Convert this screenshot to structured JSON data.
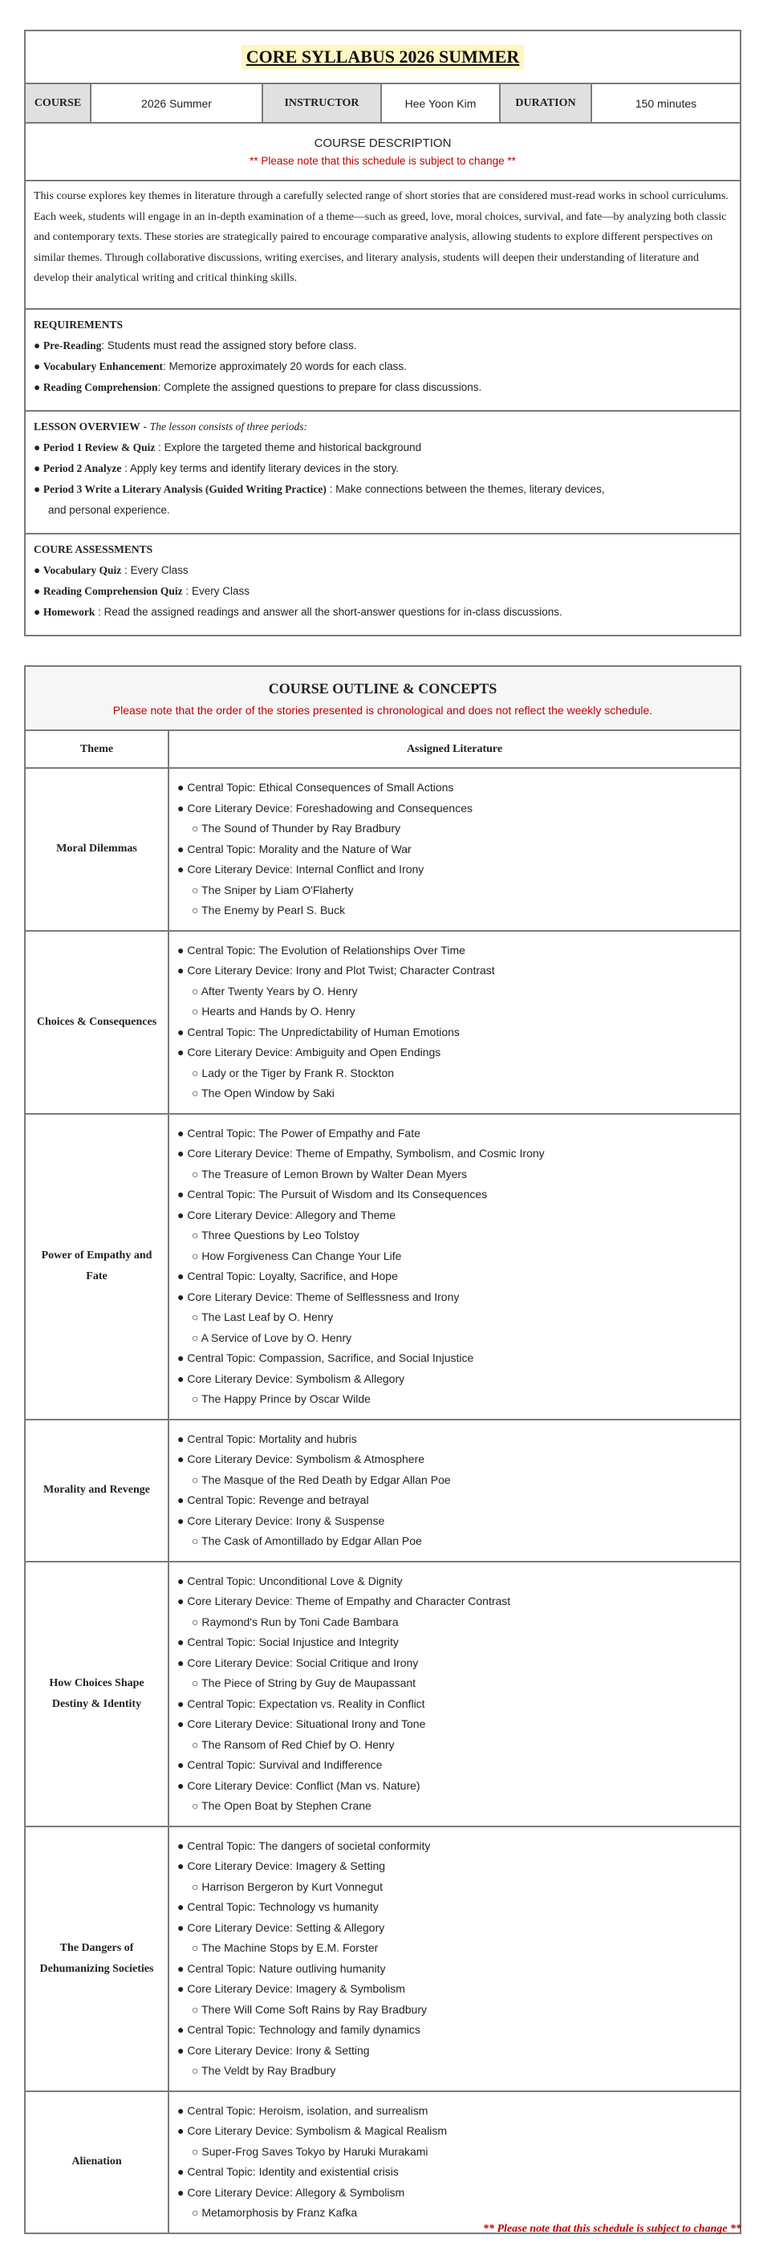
{
  "header": {
    "title": "CORE SYLLABUS 2026 SUMMER",
    "course_label": "COURSE",
    "course_value": "2026 Summer",
    "instructor_label": "INSTRUCTOR",
    "instructor_value": "Hee Yoon Kim",
    "duration_label": "DURATION",
    "duration_value": "150 minutes"
  },
  "description": {
    "heading": "COURSE DESCRIPTION",
    "notice": "** Please note that this schedule is subject to change **",
    "body": "This course explores key themes in literature through a carefully selected range of short stories that are considered must-read works in school curriculums. Each week, students will engage in an in-depth examination of a theme—such as greed, love, moral choices, survival, and fate—by analyzing both classic and contemporary texts. These stories are strategically paired to encourage comparative analysis, allowing students to explore different perspectives on similar themes. Through collaborative discussions, writing exercises, and literary analysis, students will deepen their understanding of literature and develop their analytical writing and critical thinking skills."
  },
  "requirements": {
    "heading": "REQUIREMENTS",
    "items": [
      {
        "label": "Pre-Reading",
        "sep": ": ",
        "text": "Students must read the assigned story before class."
      },
      {
        "label": "Vocabulary Enhancement",
        "sep": ": ",
        "text": "Memorize approximately 20 words for each class."
      },
      {
        "label": "Reading Comprehension",
        "sep": ": ",
        "text": "Complete the assigned questions to prepare for class discussions."
      }
    ]
  },
  "lesson": {
    "heading": "LESSON OVERVIEW",
    "dash": " - ",
    "subtitle": "The lesson consists of three periods:",
    "items": [
      {
        "label": "Period 1 Review & Quiz",
        "sep": " : ",
        "text": "Explore the targeted theme and historical background"
      },
      {
        "label": "Period 2 Analyze",
        "sep": " : ",
        "text": "Apply key terms and identify literary devices in the story."
      },
      {
        "label": "Period 3 Write a Literary Analysis (Guided Writing Practice)",
        "sep": " : ",
        "text": "Make connections between the themes, literary devices,",
        "cont": "and personal experience."
      }
    ]
  },
  "assessments": {
    "heading": "COURE ASSESSMENTS",
    "items": [
      {
        "label": "Vocabulary Quiz",
        "sep": " : ",
        "text": "Every Class"
      },
      {
        "label": "Reading Comprehension Quiz",
        "sep": " : ",
        "text": "Every Class"
      },
      {
        "label": "Homework",
        "sep": " : ",
        "text": "Read the assigned readings and answer all the short-answer questions for in-class discussions."
      }
    ]
  },
  "outline": {
    "title": "COURSE OUTLINE & CONCEPTS",
    "notice": "Please note that the order of the stories presented is chronological and does not reflect the weekly schedule.",
    "col_theme": "Theme",
    "col_lit": "Assigned Literature",
    "bullet_filled": "●",
    "bullet_hollow": "○",
    "rows": [
      {
        "theme": "Moral Dilemmas",
        "items": [
          {
            "type": "main",
            "text": "Central Topic: Ethical Consequences of Small Actions"
          },
          {
            "type": "main",
            "text": "Core Literary Device: Foreshadowing and Consequences"
          },
          {
            "type": "story",
            "text": "The Sound of Thunder by Ray Bradbury"
          },
          {
            "type": "main",
            "text": "Central Topic: Morality and the Nature of War"
          },
          {
            "type": "main",
            "text": "Core Literary Device: Internal Conflict and Irony"
          },
          {
            "type": "story",
            "text": "The Sniper by Liam O'Flaherty"
          },
          {
            "type": "story",
            "text": "The Enemy by Pearl S. Buck"
          }
        ]
      },
      {
        "theme": "Choices & Consequences",
        "items": [
          {
            "type": "main",
            "text": "Central Topic: The Evolution of Relationships Over Time"
          },
          {
            "type": "main",
            "text": "Core Literary Device: Irony and Plot Twist; Character Contrast"
          },
          {
            "type": "story",
            "text": "After Twenty Years by O. Henry"
          },
          {
            "type": "story",
            "text": "Hearts and Hands by O. Henry"
          },
          {
            "type": "main",
            "text": "Central Topic: The Unpredictability of Human Emotions"
          },
          {
            "type": "main",
            "text": "Core Literary Device: Ambiguity and Open Endings"
          },
          {
            "type": "story",
            "text": "Lady or the Tiger by Frank R. Stockton"
          },
          {
            "type": "story",
            "text": "The Open Window by Saki"
          }
        ]
      },
      {
        "theme": "Power of Empathy and Fate",
        "items": [
          {
            "type": "main",
            "text": "Central Topic: The Power of Empathy and Fate"
          },
          {
            "type": "main",
            "text": "Core Literary Device: Theme of Empathy, Symbolism, and Cosmic Irony"
          },
          {
            "type": "story",
            "text": "The Treasure of Lemon Brown by Walter Dean Myers"
          },
          {
            "type": "main",
            "text": "Central Topic: The Pursuit of Wisdom and Its Consequences"
          },
          {
            "type": "main",
            "text": "Core Literary Device: Allegory and Theme"
          },
          {
            "type": "story",
            "text": "Three Questions by Leo Tolstoy"
          },
          {
            "type": "story",
            "text": "How Forgiveness Can Change Your Life"
          },
          {
            "type": "main",
            "text": "Central Topic: Loyalty, Sacrifice, and Hope"
          },
          {
            "type": "main",
            "text": "Core Literary Device: Theme of Selflessness and Irony"
          },
          {
            "type": "story",
            "text": "The Last Leaf by O. Henry"
          },
          {
            "type": "story",
            "text": "A Service of Love by O. Henry"
          },
          {
            "type": "main",
            "text": "Central Topic: Compassion, Sacrifice, and Social Injustice"
          },
          {
            "type": "main",
            "text": "Core Literary Device: Symbolism & Allegory"
          },
          {
            "type": "story",
            "text": "The Happy Prince by Oscar Wilde"
          }
        ]
      },
      {
        "theme": "Morality and Revenge",
        "items": [
          {
            "type": "main",
            "text": "Central Topic: Mortality and hubris"
          },
          {
            "type": "main",
            "text": "Core Literary Device: Symbolism & Atmosphere"
          },
          {
            "type": "story",
            "text": "The Masque of the Red Death by Edgar Allan Poe"
          },
          {
            "type": "main",
            "text": "Central Topic: Revenge and betrayal"
          },
          {
            "type": "main",
            "text": "Core Literary Device: Irony & Suspense"
          },
          {
            "type": "story",
            "text": "The Cask of Amontillado by Edgar Allan Poe"
          }
        ]
      },
      {
        "theme": "How Choices Shape Destiny & Identity",
        "items": [
          {
            "type": "main",
            "text": "Central Topic: Unconditional Love & Dignity"
          },
          {
            "type": "main",
            "text": "Core Literary Device: Theme of Empathy and Character Contrast"
          },
          {
            "type": "story",
            "text": "Raymond's Run by Toni Cade Bambara"
          },
          {
            "type": "main",
            "text": "Central Topic: Social Injustice and Integrity"
          },
          {
            "type": "main",
            "text": "Core Literary Device: Social Critique and Irony"
          },
          {
            "type": "story",
            "text": "The Piece of String by Guy de Maupassant"
          },
          {
            "type": "main",
            "text": "Central Topic: Expectation vs. Reality in Conflict"
          },
          {
            "type": "main",
            "text": "Core Literary Device: Situational Irony and Tone"
          },
          {
            "type": "story",
            "text": "The Ransom of Red Chief by O. Henry"
          },
          {
            "type": "main",
            "text": "Central Topic: Survival and Indifference"
          },
          {
            "type": "main",
            "text": "Core Literary Device: Conflict (Man vs. Nature)"
          },
          {
            "type": "story",
            "text": "The Open Boat by Stephen Crane"
          }
        ]
      },
      {
        "theme": "The Dangers of Dehumanizing Societies",
        "items": [
          {
            "type": "main",
            "text": "Central Topic: The dangers of societal conformity"
          },
          {
            "type": "main",
            "text": "Core Literary Device: Imagery & Setting"
          },
          {
            "type": "story",
            "text": "Harrison Bergeron by Kurt Vonnegut"
          },
          {
            "type": "main",
            "text": "Central Topic: Technology vs humanity"
          },
          {
            "type": "main",
            "text": "Core Literary Device: Setting & Allegory"
          },
          {
            "type": "story",
            "text": "The Machine Stops by E.M. Forster"
          },
          {
            "type": "main",
            "text": "Central Topic: Nature outliving humanity"
          },
          {
            "type": "main",
            "text": "Core Literary Device: Imagery & Symbolism"
          },
          {
            "type": "story",
            "text": "There Will Come Soft Rains by Ray Bradbury"
          },
          {
            "type": "main",
            "text": "Central Topic: Technology and family dynamics"
          },
          {
            "type": "main",
            "text": "Core Literary Device: Irony & Setting"
          },
          {
            "type": "story",
            "text": "The Veldt by Ray Bradbury"
          }
        ]
      },
      {
        "theme": "Alienation",
        "items": [
          {
            "type": "main",
            "text": "Central Topic: Heroism, isolation, and surrealism"
          },
          {
            "type": "main",
            "text": "Core Literary Device: Symbolism & Magical Realism"
          },
          {
            "type": "story",
            "text": "Super-Frog Saves Tokyo by Haruki Murakami"
          },
          {
            "type": "main",
            "text": "Central Topic: Identity and existential crisis"
          },
          {
            "type": "main",
            "text": "Core Literary Device: Allegory & Symbolism"
          },
          {
            "type": "story",
            "text": "Metamorphosis by Franz Kafka"
          }
        ]
      }
    ]
  },
  "footer_notice": "** Please note that this schedule is subject to change **",
  "colors": {
    "notice_red": "#c00000",
    "title_highlight": "#fff6c2",
    "label_bg": "#e0e0e0",
    "border": "#7a7a7a"
  }
}
